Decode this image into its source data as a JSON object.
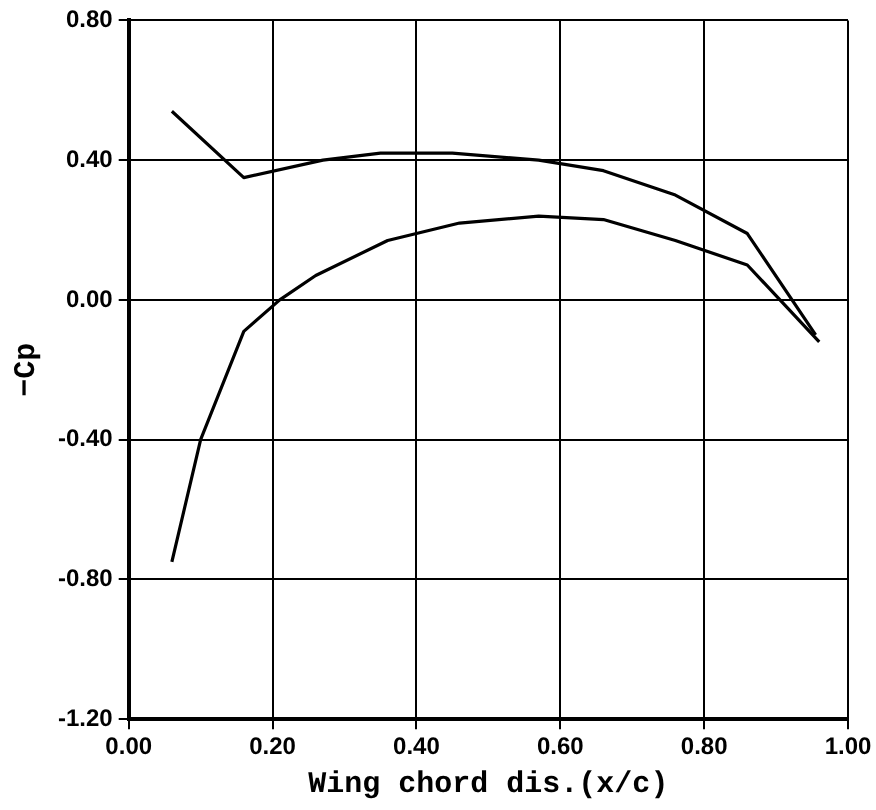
{
  "chart_data": {
    "type": "line",
    "xlabel": "Wing chord dis.(x/c)",
    "ylabel": "−Cp",
    "series": [
      {
        "color": "#000000",
        "x": [
          0.06,
          0.16,
          0.27,
          0.35,
          0.45,
          0.57,
          0.66,
          0.76,
          0.86,
          0.955
        ],
        "values": [
          0.54,
          0.35,
          0.4,
          0.42,
          0.42,
          0.4,
          0.37,
          0.3,
          0.19,
          -0.1
        ]
      },
      {
        "color": "#000000",
        "x": [
          0.06,
          0.1,
          0.16,
          0.21,
          0.26,
          0.36,
          0.46,
          0.57,
          0.66,
          0.76,
          0.86,
          0.96
        ],
        "values": [
          -0.75,
          -0.4,
          -0.09,
          0.0,
          0.07,
          0.17,
          0.22,
          0.24,
          0.23,
          0.17,
          0.1,
          -0.12
        ]
      }
    ],
    "xlim": [
      0,
      1
    ],
    "xticks": [
      {
        "value": 0,
        "label": "0.00"
      },
      {
        "value": 0.2,
        "label": "0.20"
      },
      {
        "value": 0.4,
        "label": "0.40"
      },
      {
        "value": 0.6,
        "label": "0.60"
      },
      {
        "value": 0.8,
        "label": "0.80"
      },
      {
        "value": 1,
        "label": "1.00"
      }
    ],
    "ylim": [
      -1.2,
      0.8
    ],
    "yticks": [
      {
        "value": -1.2,
        "label": "-1.20"
      },
      {
        "value": -0.8,
        "label": "-0.80"
      },
      {
        "value": -0.4,
        "label": "-0.40"
      },
      {
        "value": 0,
        "label": "0.00"
      },
      {
        "value": 0.4,
        "label": "0.40"
      },
      {
        "value": 0.8,
        "label": "0.80"
      }
    ],
    "grid": true,
    "legend": false,
    "marker": "none",
    "line_style": "solid"
  }
}
